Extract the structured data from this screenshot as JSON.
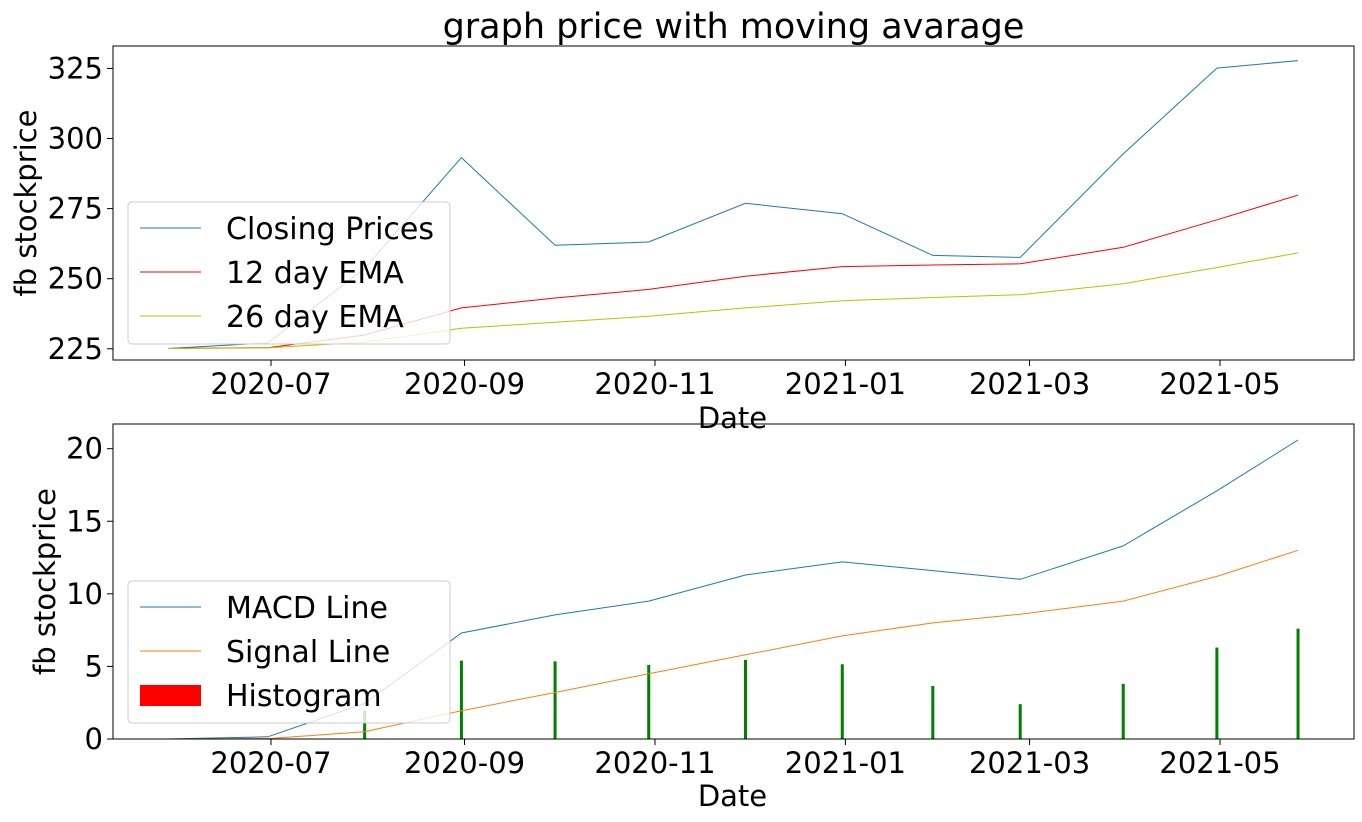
{
  "chart_data": [
    {
      "type": "line",
      "title": "graph price with moving avarage",
      "xlabel": "Date",
      "ylabel": "fb stockprice",
      "x": [
        "2020-05-29",
        "2020-06-30",
        "2020-07-31",
        "2020-08-31",
        "2020-09-30",
        "2020-10-30",
        "2020-11-30",
        "2020-12-31",
        "2021-01-29",
        "2021-02-26",
        "2021-03-31",
        "2021-04-30",
        "2021-05-26"
      ],
      "xticks": [
        "2020-07",
        "2020-09",
        "2020-11",
        "2021-01",
        "2021-03",
        "2021-05"
      ],
      "yticks": [
        225,
        250,
        275,
        300,
        325
      ],
      "ylim": [
        221,
        333
      ],
      "grid": false,
      "legend_position": "lower-left",
      "series": [
        {
          "name": "Closing Prices",
          "color": "#1f77b4",
          "values": [
            225.1,
            227.1,
            253.7,
            293.2,
            261.9,
            263.1,
            276.9,
            273.2,
            258.3,
            257.6,
            294.5,
            325.1,
            327.8
          ]
        },
        {
          "name": "12 day EMA",
          "color": "#ff0000",
          "values": [
            225.1,
            225.4,
            229.9,
            239.6,
            243.1,
            246.2,
            250.9,
            254.3,
            254.9,
            255.3,
            261.2,
            271.0,
            279.8
          ]
        },
        {
          "name": "26 day EMA",
          "color": "#bfbf00",
          "values": [
            225.1,
            225.3,
            227.4,
            232.3,
            234.5,
            236.6,
            239.6,
            242.1,
            243.3,
            244.3,
            248.2,
            254.0,
            259.2
          ]
        }
      ]
    },
    {
      "type": "line",
      "title": "",
      "xlabel": "Date",
      "ylabel": "fb stockprice",
      "x": [
        "2020-05-29",
        "2020-06-30",
        "2020-07-31",
        "2020-08-31",
        "2020-09-30",
        "2020-10-30",
        "2020-11-30",
        "2020-12-31",
        "2021-01-29",
        "2021-02-26",
        "2021-03-31",
        "2021-04-30",
        "2021-05-26"
      ],
      "xticks": [
        "2020-07",
        "2020-09",
        "2020-11",
        "2021-01",
        "2021-03",
        "2021-05"
      ],
      "yticks": [
        0,
        5,
        10,
        15,
        20
      ],
      "ylim": [
        0,
        21.7
      ],
      "grid": false,
      "legend_position": "lower-left",
      "series": [
        {
          "name": "MACD Line",
          "color": "#1f77b4",
          "values": [
            0.0,
            0.15,
            2.45,
            7.3,
            8.55,
            9.5,
            11.3,
            12.2,
            11.6,
            11.0,
            13.3,
            17.1,
            20.6
          ]
        },
        {
          "name": "Signal Line",
          "color": "#ff7f0e",
          "values": [
            0.0,
            0.03,
            0.5,
            1.95,
            3.2,
            4.5,
            5.8,
            7.1,
            8.0,
            8.6,
            9.5,
            11.2,
            13.0
          ]
        }
      ],
      "histogram": {
        "name": "Histogram",
        "legend_color": "#ff0000",
        "bar_color": "#008000",
        "x": [
          "2020-07-31",
          "2020-08-31",
          "2020-09-30",
          "2020-10-30",
          "2020-11-30",
          "2020-12-31",
          "2021-01-29",
          "2021-02-26",
          "2021-03-31",
          "2021-04-30",
          "2021-05-26"
        ],
        "values": [
          1.95,
          5.4,
          5.35,
          5.1,
          5.45,
          5.15,
          3.65,
          2.4,
          3.8,
          6.3,
          7.6
        ]
      }
    }
  ]
}
